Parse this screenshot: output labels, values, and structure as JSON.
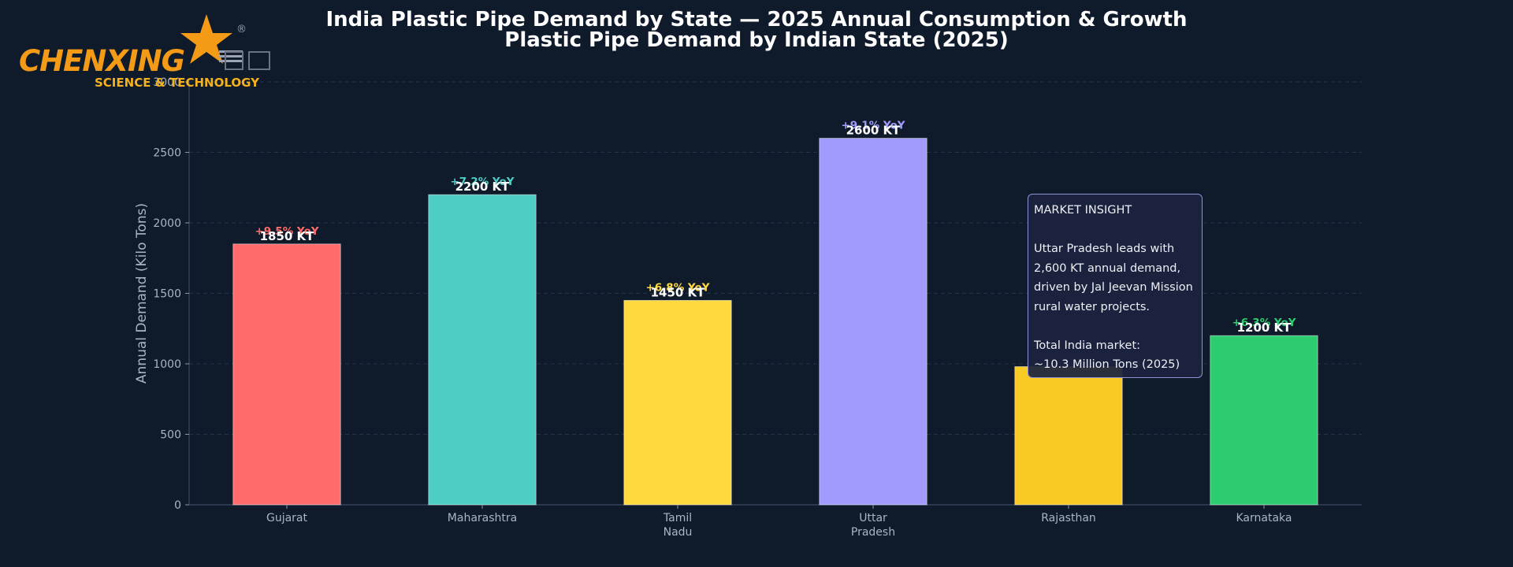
{
  "title": "India Plastic Pipe Demand by State — 2025 Annual Consumption & Growth",
  "subtitle": "Plastic Pipe Demand by Indian State (2025)",
  "logo": {
    "brand": "CHENXING",
    "tagline": "SCIENCE & TECHNOLOGY",
    "registered": "®",
    "colors": {
      "primary": "#f39a17",
      "secondary": "#f5b21c"
    }
  },
  "insight": {
    "heading": "MARKET INSIGHT",
    "lines": [
      "Uttar Pradesh leads with",
      "2,600 KT annual demand,",
      "driven by Jal Jeevan Mission",
      "rural water projects."
    ],
    "total_lines": [
      "Total India market:",
      "~10.3 Million Tons (2025)"
    ]
  },
  "chart_data": {
    "type": "bar",
    "categories": [
      [
        "Gujarat"
      ],
      [
        "Maharashtra"
      ],
      [
        "Tamil",
        "Nadu"
      ],
      [
        "Uttar",
        "Pradesh"
      ],
      [
        "Rajasthan"
      ],
      [
        "Karnataka"
      ]
    ],
    "values": [
      1850,
      2200,
      1450,
      2600,
      980,
      1200
    ],
    "value_labels": [
      "1850 KT",
      "2200 KT",
      "1450 KT",
      "2600 KT",
      "",
      "1200 KT"
    ],
    "growth_labels": [
      "+9.5% YoY",
      "+7.2% YoY",
      "+6.8% YoY",
      "+9.1% YoY",
      "",
      "+6.3% YoY"
    ],
    "colors": [
      "#ff6b6b",
      "#4ecdc4",
      "#ffd93d",
      "#a29bfe",
      "#f9ca24",
      "#2ecc71"
    ],
    "growth_colors": [
      "#ff6b6b",
      "#4ecdc4",
      "#ffd93d",
      "#a29bfe",
      "#f9ca24",
      "#2ecc71"
    ],
    "ylabel": "Annual Demand (Kilo Tons)",
    "xlabel": "",
    "ylim": [
      0,
      3000
    ],
    "yticks": [
      0,
      500,
      1000,
      1500,
      2000,
      2500,
      3000
    ],
    "ytick_labels": [
      "0",
      "500",
      "1000",
      "1500",
      "2000",
      "2500",
      "3000"
    ],
    "grid": true
  }
}
